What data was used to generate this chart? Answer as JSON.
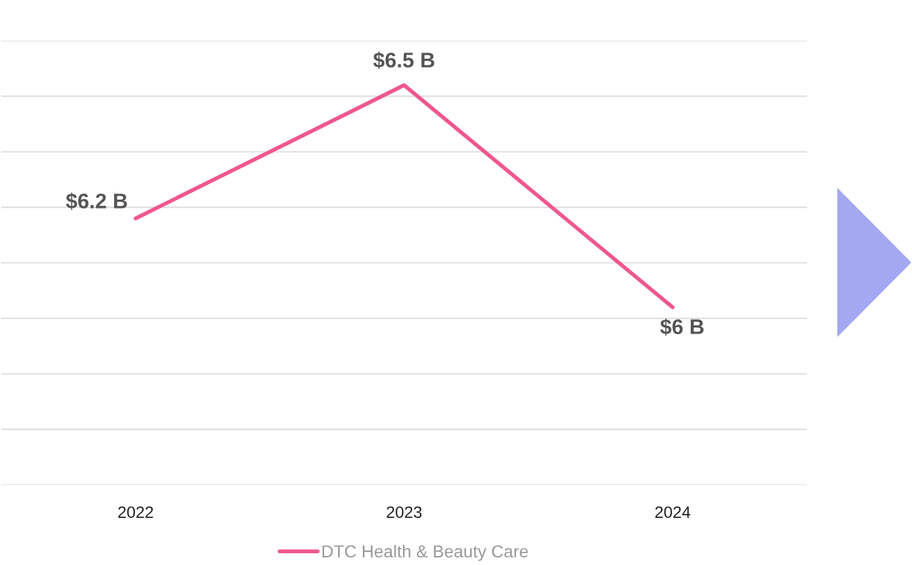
{
  "chart_data": {
    "type": "line",
    "categories": [
      "2022",
      "2023",
      "2024"
    ],
    "series": [
      {
        "name": "DTC Health & Beauty Care",
        "color": "#f0578f",
        "values": [
          6.2,
          6.5,
          6.0
        ],
        "value_labels": [
          "$6.2 B",
          "$6.5 B",
          "$6 B"
        ]
      }
    ],
    "ylim": [
      5.6,
      6.6
    ],
    "yticks": [
      {
        "value": 5.6,
        "label": null
      },
      {
        "value": 5.725,
        "label": null
      },
      {
        "value": 5.85,
        "label": null
      },
      {
        "value": 5.975,
        "label": null
      },
      {
        "value": 6.1,
        "label": null
      },
      {
        "value": 6.225,
        "label": null
      },
      {
        "value": 6.35,
        "label": null
      },
      {
        "value": 6.475,
        "label": null
      },
      {
        "value": 6.6,
        "label": null
      }
    ],
    "tick_labels": "x",
    "grid": "y",
    "legend": "bottom",
    "marker": "none",
    "line_style": "solid"
  }
}
